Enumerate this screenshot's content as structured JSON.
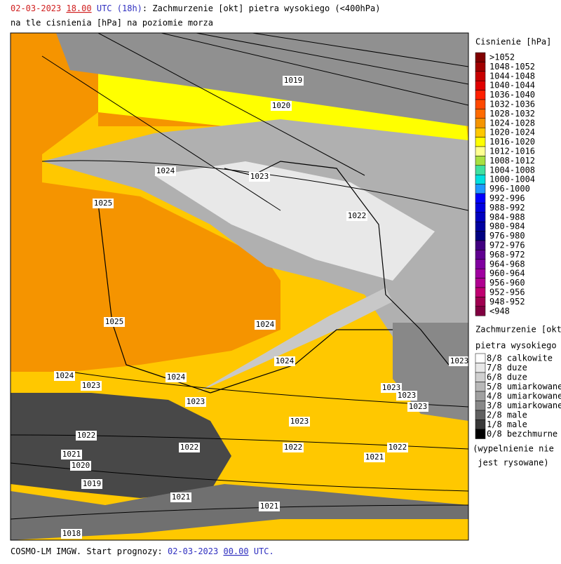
{
  "header": {
    "date": "02-03-2023",
    "time": "18.00",
    "zone": "UTC",
    "lead": "(18h)",
    "title": ": Zachmurzenie [okt] pietra wysokiego (<400hPa)",
    "subtitle": "na tle cisnienia [hPa] na poziomie morza"
  },
  "footer": {
    "prefix": "COSMO-LM IMGW. Start prognozy:",
    "date": "02-03-2023",
    "time": "00.00",
    "zone": "UTC."
  },
  "pressure_legend": {
    "title": "Cisnienie [hPa]",
    "items": [
      {
        "label": ">1052",
        "color": "#800000"
      },
      {
        "label": "1048-1052",
        "color": "#a00000"
      },
      {
        "label": "1044-1048",
        "color": "#c80000"
      },
      {
        "label": "1040-1044",
        "color": "#e00000"
      },
      {
        "label": "1036-1040",
        "color": "#ff2000"
      },
      {
        "label": "1032-1036",
        "color": "#ff4800"
      },
      {
        "label": "1028-1032",
        "color": "#ff6a00"
      },
      {
        "label": "1024-1028",
        "color": "#f59400"
      },
      {
        "label": "1020-1024",
        "color": "#ffc800"
      },
      {
        "label": "1016-1020",
        "color": "#ffff00"
      },
      {
        "label": "1012-1016",
        "color": "#ffff90"
      },
      {
        "label": "1008-1012",
        "color": "#a8e040"
      },
      {
        "label": "1004-1008",
        "color": "#40e0a0"
      },
      {
        "label": "1000-1004",
        "color": "#00e0e0"
      },
      {
        "label": "996-1000",
        "color": "#2098ff"
      },
      {
        "label": "992-996",
        "color": "#0000ff"
      },
      {
        "label": "988-992",
        "color": "#0000e0"
      },
      {
        "label": "984-988",
        "color": "#0000c0"
      },
      {
        "label": "980-984",
        "color": "#0000a0"
      },
      {
        "label": "976-980",
        "color": "#000080"
      },
      {
        "label": "972-976",
        "color": "#400080"
      },
      {
        "label": "968-972",
        "color": "#600090"
      },
      {
        "label": "964-968",
        "color": "#8000a0"
      },
      {
        "label": "960-964",
        "color": "#a000a0"
      },
      {
        "label": "956-960",
        "color": "#b00090"
      },
      {
        "label": "952-956",
        "color": "#c00070"
      },
      {
        "label": "948-952",
        "color": "#a00050"
      },
      {
        "label": "<948",
        "color": "#800040"
      }
    ]
  },
  "cloud_legend": {
    "title": "Zachmurzenie [okt]",
    "subtitle": "pietra wysokiego",
    "items": [
      {
        "label": "8/8 calkowite",
        "color": "#ffffff"
      },
      {
        "label": "7/8 duze",
        "color": "#e8e8e8"
      },
      {
        "label": "6/8 duze",
        "color": "#d0d0d0"
      },
      {
        "label": "5/8 umiarkowane",
        "color": "#b8b8b8"
      },
      {
        "label": "4/8 umiarkowane",
        "color": "#a0a0a0"
      },
      {
        "label": "3/8 umiarkowane",
        "color": "#888888"
      },
      {
        "label": "2/8 male",
        "color": "#606060"
      },
      {
        "label": "1/8 male",
        "color": "#383838"
      },
      {
        "label": "0/8 bezchmurne",
        "color": "#000000"
      }
    ],
    "note": [
      "(wypelnienie nie",
      "jest rysowane)"
    ]
  },
  "isobar_labels": [
    "1019",
    "1020",
    "1024",
    "1023",
    "1022",
    "1025",
    "1025",
    "1024",
    "1024",
    "1023",
    "1024",
    "1024",
    "1023",
    "1023",
    "1023",
    "1023",
    "1023",
    "1023",
    "1022",
    "1022",
    "1022",
    "1022",
    "1021",
    "1021",
    "1020",
    "1019",
    "1021",
    "1021",
    "1018"
  ]
}
